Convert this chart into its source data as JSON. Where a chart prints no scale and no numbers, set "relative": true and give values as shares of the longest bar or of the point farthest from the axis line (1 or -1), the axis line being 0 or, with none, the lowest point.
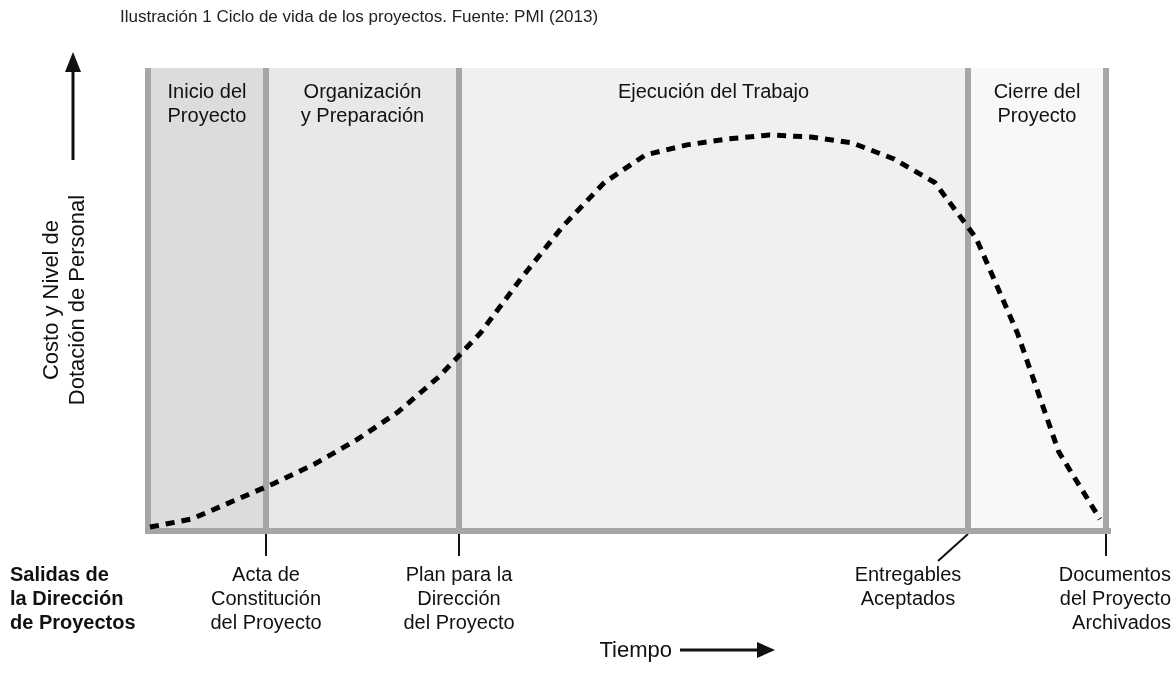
{
  "chart_data": {
    "type": "line",
    "title": "Ilustración 1 Ciclo de vida de los proyectos. Fuente: PMI (2013)",
    "xlabel": "Tiempo",
    "ylabel": "Costo y Nivel de\nDotación de Personal",
    "relative": true,
    "categories": [
      null,
      null,
      null,
      null,
      null,
      null,
      null,
      null,
      null,
      null,
      null,
      null,
      null,
      null,
      null,
      null,
      null,
      null,
      null,
      null,
      null,
      null,
      null,
      null
    ],
    "series": [
      {
        "color": "#000000",
        "values": [
          0.01,
          0.03,
          0.075,
          0.12,
          0.17,
          0.23,
          0.3,
          0.39,
          0.5,
          0.64,
          0.77,
          0.88,
          0.95,
          0.975,
          0.99,
          1,
          0.995,
          0.98,
          0.94,
          0.88,
          0.74,
          0.5,
          0.2,
          0.03
        ]
      }
    ],
    "line_style": "dashed",
    "marker": "none",
    "grid": false,
    "legend": false,
    "annotations": [
      "Inicio del\nProyecto",
      "Organización\ny Preparación",
      "Ejecución del Trabajo",
      "Cierre del\nProyecto",
      "Acta de\nConstitución\ndel Proyecto",
      "Plan para la\nDirección\ndel Proyecto",
      "Entregables\nAceptados",
      "Documentos\ndel Proyecto\nArchivados",
      "Salidas de\nla Dirección\nde Proyectos"
    ]
  }
}
